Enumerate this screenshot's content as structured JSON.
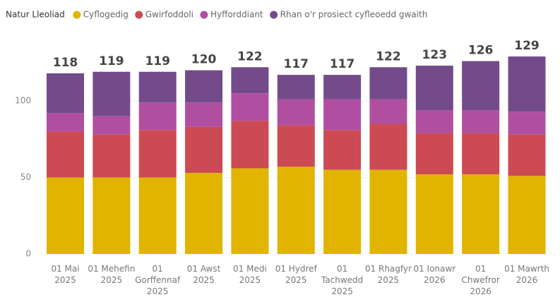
{
  "chart_data": {
    "type": "stacked_bar",
    "legend_title": "Natur Lleoliad",
    "categories": [
      "01 Mai 2025",
      "01 Mehefin 2025",
      "01 Gorffennaf 2025",
      "01 Awst 2025",
      "01 Medi 2025",
      "01 Hydref 2025",
      "01 Tachwedd 2025",
      "01 Rhagfyr 2025",
      "01 Ionawr 2026",
      "01 Chwefror 2026",
      "01 Mawrth 2026"
    ],
    "series": [
      {
        "name": "Cyflogedig",
        "color": "#e0b400",
        "values": [
          50,
          50,
          50,
          53,
          56,
          57,
          55,
          55,
          52,
          52,
          51
        ]
      },
      {
        "name": "Gwirfoddoli",
        "color": "#cc4a53",
        "values": [
          30,
          28,
          31,
          30,
          31,
          27,
          26,
          30,
          27,
          27,
          27
        ]
      },
      {
        "name": "Hyfforddiant",
        "color": "#b04fa0",
        "values": [
          12,
          12,
          18,
          16,
          18,
          17,
          20,
          16,
          15,
          15,
          15
        ]
      },
      {
        "name": "Rhan o'r prosiect cyfleoedd gwaith",
        "color": "#744b8a",
        "values": [
          26,
          29,
          20,
          21,
          17,
          16,
          16,
          21,
          29,
          32,
          36
        ]
      }
    ],
    "totals": [
      118,
      119,
      119,
      120,
      122,
      117,
      117,
      122,
      123,
      126,
      129
    ],
    "ylim": [
      0,
      135
    ],
    "yticks": [
      0,
      50,
      100
    ],
    "grid": true
  }
}
